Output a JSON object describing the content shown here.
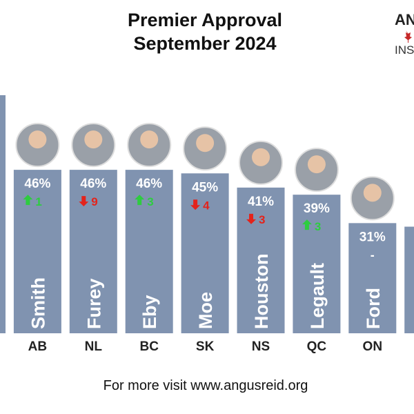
{
  "chart_data": {
    "type": "bar",
    "title": [
      "Premier Approval",
      "September 2024"
    ],
    "logo": [
      "AN",
      "INST"
    ],
    "footer": "For more visit www.angusreid.org",
    "categories": [
      null,
      "AB",
      "NL",
      "BC",
      "SK",
      "NS",
      "QC",
      "ON",
      null
    ],
    "names": [
      null,
      "Smith",
      "Furey",
      "Eby",
      "Moe",
      "Houston",
      "Legault",
      "Ford",
      null
    ],
    "values": [
      67,
      46,
      46,
      46,
      45,
      41,
      39,
      31,
      30
    ],
    "value_labels": [
      null,
      "46%",
      "46%",
      "46%",
      "45%",
      "41%",
      "39%",
      "31%",
      null
    ],
    "changes": [
      null,
      1,
      -9,
      3,
      -4,
      -3,
      3,
      0,
      null
    ],
    "change_labels": [
      null,
      "1",
      "9",
      "3",
      "4",
      "3",
      "3",
      "-",
      null
    ],
    "color": "#8093b0",
    "up_color": "#2ecc40",
    "down_color": "#e3231b"
  }
}
